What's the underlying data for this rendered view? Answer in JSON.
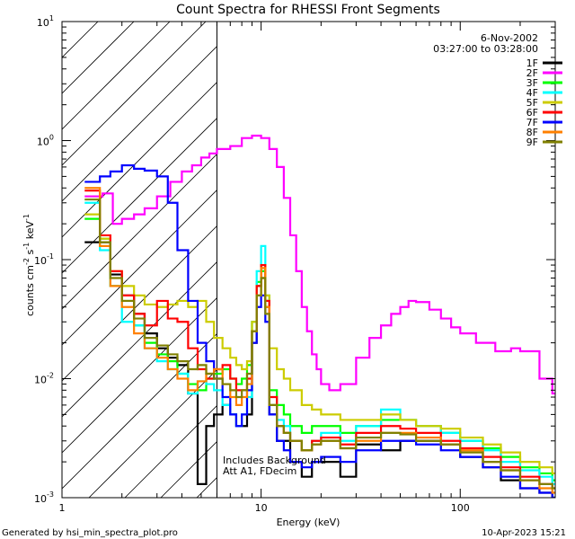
{
  "chart_data": {
    "type": "line",
    "title": "Count Spectra for RHESSI Front Segments",
    "xlabel": "Energy (keV)",
    "ylabel": "counts cm",
    "ylabel_sup1": "-2",
    "ylabel_mid": " s",
    "ylabel_sup2": "-1",
    "ylabel_unit": " keV",
    "ylabel_sup3": "-1",
    "xscale": "log",
    "yscale": "log",
    "xlim": [
      1,
      300
    ],
    "ylim": [
      0.001,
      10
    ],
    "x_tick_labels": [
      {
        "value": 1,
        "label": "1"
      },
      {
        "value": 10,
        "label": "10"
      },
      {
        "value": 100,
        "label": "100"
      }
    ],
    "y_tick_labels": [
      {
        "value": 0.001,
        "base": "10",
        "exp": "-3"
      },
      {
        "value": 0.01,
        "base": "10",
        "exp": "-2"
      },
      {
        "value": 0.1,
        "base": "10",
        "exp": "-1"
      },
      {
        "value": 1,
        "base": "10",
        "exp": "0"
      },
      {
        "value": 10,
        "base": "10",
        "exp": "1"
      }
    ],
    "date": "6-Nov-2002",
    "time_range": "03:27:00 to 03:28:00",
    "hatched_region": {
      "x_from": 1,
      "x_to": 6
    },
    "annotation_line1": "Includes Background",
    "annotation_line2": "Att A1, FDecim",
    "footer_left": "Generated by hsi_min_spectra_plot.pro",
    "footer_right": "10-Apr-2023 15:21",
    "legend_position": "top-right",
    "series": [
      {
        "name": "1F",
        "color": "#000000",
        "x": [
          1.3,
          1.55,
          1.75,
          2,
          2.3,
          2.6,
          3,
          3.4,
          3.8,
          4.3,
          4.8,
          5.3,
          5.8,
          6.4,
          7,
          7.5,
          8,
          8.5,
          9,
          9.5,
          10,
          10.5,
          11,
          12,
          13,
          14,
          16,
          18,
          20,
          25,
          30,
          40,
          50,
          60,
          80,
          100,
          130,
          160,
          200,
          250,
          290
        ],
        "values": [
          0.14,
          0.14,
          0.075,
          0.05,
          0.035,
          0.024,
          0.018,
          0.015,
          0.013,
          0.0075,
          0.0013,
          0.004,
          0.005,
          0.006,
          0.005,
          0.004,
          0.004,
          0.005,
          0.02,
          0.06,
          0.07,
          0.045,
          0.005,
          0.003,
          0.003,
          0.002,
          0.0015,
          0.002,
          0.002,
          0.0015,
          0.0028,
          0.0025,
          0.003,
          0.003,
          0.0028,
          0.0022,
          0.0018,
          0.0014,
          0.0012,
          0.0011,
          0.001
        ]
      },
      {
        "name": "2F",
        "color": "#ff00ff",
        "x": [
          1.3,
          1.6,
          1.8,
          2,
          2.3,
          2.6,
          3,
          3.5,
          4,
          4.5,
          5,
          5.5,
          6,
          7,
          8,
          9,
          10,
          11,
          12,
          13,
          14,
          15,
          16,
          17,
          18,
          19,
          20,
          22,
          25,
          30,
          35,
          40,
          45,
          50,
          55,
          60,
          70,
          80,
          90,
          100,
          120,
          150,
          180,
          200,
          250,
          290
        ],
        "values": [
          0.34,
          0.36,
          0.2,
          0.22,
          0.24,
          0.27,
          0.34,
          0.45,
          0.55,
          0.62,
          0.72,
          0.78,
          0.85,
          0.9,
          1.05,
          1.1,
          1.05,
          0.85,
          0.6,
          0.33,
          0.16,
          0.08,
          0.04,
          0.025,
          0.016,
          0.012,
          0.009,
          0.008,
          0.009,
          0.015,
          0.022,
          0.028,
          0.035,
          0.04,
          0.045,
          0.044,
          0.038,
          0.032,
          0.027,
          0.024,
          0.02,
          0.017,
          0.018,
          0.017,
          0.01,
          0.0075
        ]
      },
      {
        "name": "3F",
        "color": "#00ff00",
        "x": [
          1.3,
          1.55,
          1.75,
          2,
          2.3,
          2.6,
          3,
          3.4,
          3.8,
          4.3,
          4.8,
          5.3,
          5.8,
          6.4,
          7,
          7.5,
          8,
          8.5,
          9,
          9.5,
          10,
          10.5,
          11,
          12,
          13,
          14,
          16,
          18,
          20,
          25,
          30,
          40,
          50,
          60,
          80,
          100,
          130,
          160,
          200,
          250,
          290
        ],
        "values": [
          0.22,
          0.15,
          0.06,
          0.045,
          0.028,
          0.02,
          0.016,
          0.014,
          0.011,
          0.009,
          0.008,
          0.01,
          0.011,
          0.012,
          0.01,
          0.009,
          0.01,
          0.013,
          0.03,
          0.065,
          0.08,
          0.04,
          0.008,
          0.006,
          0.005,
          0.004,
          0.0035,
          0.004,
          0.004,
          0.0035,
          0.004,
          0.0045,
          0.0045,
          0.004,
          0.0035,
          0.003,
          0.0026,
          0.0022,
          0.0018,
          0.0016,
          0.0014
        ]
      },
      {
        "name": "4F",
        "color": "#00ffff",
        "x": [
          1.3,
          1.55,
          1.75,
          2,
          2.3,
          2.6,
          3,
          3.4,
          3.8,
          4.3,
          4.8,
          5.3,
          5.8,
          6.4,
          7,
          7.5,
          8,
          8.5,
          9,
          9.5,
          10,
          10.5,
          11,
          12,
          13,
          14,
          16,
          18,
          20,
          25,
          30,
          40,
          50,
          60,
          80,
          100,
          130,
          160,
          200,
          250,
          290
        ],
        "values": [
          0.3,
          0.12,
          0.06,
          0.03,
          0.028,
          0.018,
          0.014,
          0.012,
          0.011,
          0.0075,
          0.0095,
          0.009,
          0.008,
          0.006,
          0.005,
          0.004,
          0.005,
          0.007,
          0.03,
          0.08,
          0.13,
          0.05,
          0.006,
          0.0045,
          0.004,
          0.003,
          0.0025,
          0.003,
          0.0035,
          0.003,
          0.004,
          0.0055,
          0.0045,
          0.004,
          0.0035,
          0.003,
          0.0025,
          0.002,
          0.0017,
          0.0015,
          0.0013
        ]
      },
      {
        "name": "5F",
        "color": "#cccc00",
        "x": [
          1.3,
          1.55,
          1.75,
          2,
          2.3,
          2.6,
          3,
          3.4,
          3.8,
          4.3,
          4.8,
          5.3,
          5.8,
          6.4,
          7,
          7.5,
          8,
          8.5,
          9,
          9.5,
          10,
          10.5,
          11,
          12,
          13,
          14,
          16,
          18,
          20,
          25,
          30,
          40,
          50,
          60,
          80,
          100,
          130,
          160,
          200,
          250,
          290
        ],
        "values": [
          0.24,
          0.15,
          0.08,
          0.06,
          0.05,
          0.042,
          0.04,
          0.042,
          0.045,
          0.04,
          0.045,
          0.03,
          0.022,
          0.018,
          0.015,
          0.013,
          0.012,
          0.014,
          0.03,
          0.06,
          0.09,
          0.05,
          0.018,
          0.012,
          0.01,
          0.008,
          0.006,
          0.0055,
          0.005,
          0.0045,
          0.0045,
          0.005,
          0.0045,
          0.004,
          0.0038,
          0.0032,
          0.0028,
          0.0024,
          0.002,
          0.0018,
          0.0016
        ]
      },
      {
        "name": "6F",
        "color": "#ff0000",
        "x": [
          1.3,
          1.55,
          1.75,
          2,
          2.3,
          2.6,
          3,
          3.4,
          3.8,
          4.3,
          4.8,
          5.3,
          5.8,
          6.4,
          7,
          7.5,
          8,
          8.5,
          9,
          9.5,
          10,
          10.5,
          11,
          12,
          13,
          14,
          16,
          18,
          20,
          25,
          30,
          40,
          50,
          60,
          80,
          100,
          130,
          160,
          200,
          250,
          290
        ],
        "values": [
          0.38,
          0.16,
          0.08,
          0.05,
          0.035,
          0.028,
          0.045,
          0.032,
          0.03,
          0.018,
          0.012,
          0.01,
          0.012,
          0.013,
          0.01,
          0.008,
          0.008,
          0.01,
          0.025,
          0.06,
          0.09,
          0.045,
          0.007,
          0.004,
          0.0035,
          0.003,
          0.0025,
          0.003,
          0.0032,
          0.0028,
          0.0035,
          0.004,
          0.0038,
          0.0035,
          0.003,
          0.0026,
          0.0022,
          0.0018,
          0.0015,
          0.0013,
          0.0012
        ]
      },
      {
        "name": "7F",
        "color": "#0000ff",
        "x": [
          1.3,
          1.55,
          1.75,
          2,
          2.3,
          2.6,
          3,
          3.4,
          3.8,
          4.3,
          4.8,
          5.3,
          5.8,
          6.4,
          7,
          7.5,
          8,
          8.5,
          9,
          9.5,
          10,
          10.5,
          11,
          12,
          13,
          14,
          16,
          18,
          20,
          25,
          30,
          40,
          50,
          60,
          80,
          100,
          130,
          160,
          200,
          250,
          290
        ],
        "values": [
          0.45,
          0.5,
          0.55,
          0.62,
          0.58,
          0.56,
          0.5,
          0.3,
          0.12,
          0.045,
          0.02,
          0.014,
          0.01,
          0.007,
          0.005,
          0.004,
          0.005,
          0.008,
          0.02,
          0.04,
          0.05,
          0.03,
          0.005,
          0.003,
          0.0025,
          0.002,
          0.0018,
          0.002,
          0.0022,
          0.002,
          0.0025,
          0.003,
          0.003,
          0.0028,
          0.0025,
          0.0022,
          0.0018,
          0.0015,
          0.0012,
          0.0011,
          0.001
        ]
      },
      {
        "name": "8F",
        "color": "#ff8000",
        "x": [
          1.3,
          1.55,
          1.75,
          2,
          2.3,
          2.6,
          3,
          3.4,
          3.8,
          4.3,
          4.8,
          5.3,
          5.8,
          6.4,
          7,
          7.5,
          8,
          8.5,
          9,
          9.5,
          10,
          10.5,
          11,
          12,
          13,
          14,
          16,
          18,
          20,
          25,
          30,
          40,
          50,
          60,
          80,
          100,
          130,
          160,
          200,
          250,
          290
        ],
        "values": [
          0.4,
          0.13,
          0.06,
          0.04,
          0.024,
          0.018,
          0.015,
          0.012,
          0.01,
          0.008,
          0.0095,
          0.011,
          0.012,
          0.009,
          0.007,
          0.006,
          0.007,
          0.009,
          0.025,
          0.05,
          0.085,
          0.04,
          0.006,
          0.004,
          0.0035,
          0.003,
          0.0025,
          0.0028,
          0.003,
          0.0026,
          0.003,
          0.0035,
          0.0035,
          0.0032,
          0.0028,
          0.0025,
          0.002,
          0.0017,
          0.0014,
          0.0012,
          0.0011
        ]
      },
      {
        "name": "9F",
        "color": "#808000",
        "x": [
          1.3,
          1.55,
          1.75,
          2,
          2.3,
          2.6,
          3,
          3.4,
          3.8,
          4.3,
          4.8,
          5.3,
          5.8,
          6.4,
          7,
          7.5,
          8,
          8.5,
          9,
          9.5,
          10,
          10.5,
          11,
          12,
          13,
          14,
          16,
          18,
          20,
          25,
          30,
          40,
          50,
          60,
          80,
          100,
          130,
          160,
          200,
          250,
          290
        ],
        "values": [
          0.32,
          0.14,
          0.07,
          0.045,
          0.032,
          0.022,
          0.019,
          0.016,
          0.014,
          0.012,
          0.013,
          0.011,
          0.01,
          0.009,
          0.008,
          0.007,
          0.008,
          0.011,
          0.025,
          0.05,
          0.07,
          0.035,
          0.006,
          0.004,
          0.0035,
          0.003,
          0.0025,
          0.0028,
          0.003,
          0.0026,
          0.0032,
          0.0035,
          0.0034,
          0.003,
          0.0028,
          0.0024,
          0.002,
          0.0017,
          0.0014,
          0.0013,
          0.0012
        ]
      }
    ]
  }
}
